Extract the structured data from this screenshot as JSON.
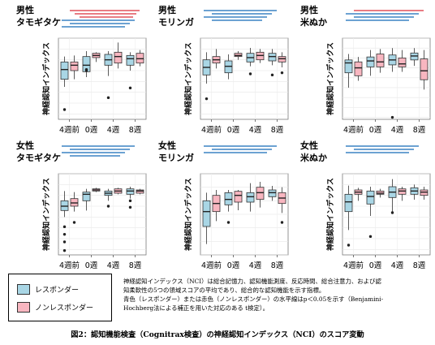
{
  "colors": {
    "responder": "#a9d6e5",
    "nonresponder": "#f8b6c0",
    "line_blue": "#3b84c4",
    "line_red": "#e0505a"
  },
  "x_ticks": [
    "4週前",
    "0週",
    "4週",
    "8週"
  ],
  "ylabel": "神経認知インデックス",
  "legend": {
    "responder": "レスポンダー",
    "nonresponder": "ノンレスポンダー"
  },
  "note": [
    "神経認知インデックス（NCI）は総合記憶力、認知機能測度、反応時間、総合注意力、および認",
    "知柔軟性の5つの領域スコアの平均であり、総合的な認知機能を示す指標。",
    "青色（レスポンダー）または赤色（ノンレスポンダー）の水平線はp＜0.05を示す（Benjamini-",
    "Hochberg法による補正を用いた対応のある t検定）。"
  ],
  "caption": "図2：認知機能検査（Cognitrax検査）の神経認知インデックス（NCI）のスコア変動",
  "chart_data": [
    {
      "type": "box",
      "sex": "男性",
      "food": "タモギタケ",
      "ylim": [
        45,
        120
      ],
      "categories": [
        "4週前",
        "0週",
        "4週",
        "8週"
      ],
      "responder": [
        {
          "min": 75,
          "q1": 82,
          "median": 91,
          "q3": 98,
          "max": 103,
          "outliers": [
            54
          ]
        },
        {
          "min": 84,
          "q1": 89,
          "median": 95,
          "q3": 103,
          "max": 108,
          "outliers": [
            90,
            91
          ]
        },
        {
          "min": 85,
          "q1": 95,
          "median": 100,
          "q3": 105,
          "max": 108,
          "outliers": [
            65
          ]
        },
        {
          "min": 90,
          "q1": 95,
          "median": 101,
          "q3": 104,
          "max": 107,
          "outliers": [
            74
          ]
        }
      ],
      "nonresponder": [
        {
          "min": 82,
          "q1": 90,
          "median": 95,
          "q3": 98,
          "max": 104,
          "outliers": []
        },
        {
          "min": 98,
          "q1": 102,
          "median": 104,
          "q3": 106,
          "max": 107,
          "outliers": []
        },
        {
          "min": 92,
          "q1": 97,
          "median": 103,
          "q3": 107,
          "max": 116,
          "outliers": []
        },
        {
          "min": 94,
          "q1": 97,
          "median": 101,
          "q3": 106,
          "max": 109,
          "outliers": []
        }
      ],
      "sig_red": 3,
      "sig_blue": 3
    },
    {
      "type": "box",
      "sex": "男性",
      "food": "モリンガ",
      "ylim": [
        45,
        120
      ],
      "categories": [
        "4週前",
        "0週",
        "4週",
        "8週"
      ],
      "responder": [
        {
          "min": 78,
          "q1": 86,
          "median": 93,
          "q3": 100,
          "max": 107,
          "outliers": [
            64
          ]
        },
        {
          "min": 82,
          "q1": 88,
          "median": 94,
          "q3": 99,
          "max": 105,
          "outliers": []
        },
        {
          "min": 94,
          "q1": 98,
          "median": 102,
          "q3": 106,
          "max": 111,
          "outliers": [
            87
          ]
        },
        {
          "min": 95,
          "q1": 99,
          "median": 103,
          "q3": 106,
          "max": 110,
          "outliers": [
            86
          ]
        }
      ],
      "nonresponder": [
        {
          "min": 92,
          "q1": 97,
          "median": 100,
          "q3": 103,
          "max": 110,
          "outliers": []
        },
        {
          "min": 100,
          "q1": 103,
          "median": 104,
          "q3": 106,
          "max": 108,
          "outliers": []
        },
        {
          "min": 97,
          "q1": 100,
          "median": 104,
          "q3": 107,
          "max": 110,
          "outliers": []
        },
        {
          "min": 93,
          "q1": 98,
          "median": 101,
          "q3": 103,
          "max": 107,
          "outliers": [
            88
          ]
        }
      ],
      "sig_red": 0,
      "sig_blue": 4
    },
    {
      "type": "box",
      "sex": "男性",
      "food": "米ぬか",
      "ylim": [
        38,
        120
      ],
      "categories": [
        "4週前",
        "0週",
        "4週",
        "8週"
      ],
      "responder": [
        {
          "min": 70,
          "q1": 85,
          "median": 95,
          "q3": 98,
          "max": 104,
          "outliers": []
        },
        {
          "min": 82,
          "q1": 91,
          "median": 97,
          "q3": 101,
          "max": 108,
          "outliers": []
        },
        {
          "min": 86,
          "q1": 93,
          "median": 98,
          "q3": 103,
          "max": 110,
          "outliers": [
            40
          ]
        },
        {
          "min": 92,
          "q1": 98,
          "median": 102,
          "q3": 105,
          "max": 110,
          "outliers": []
        }
      ],
      "nonresponder": [
        {
          "min": 77,
          "q1": 82,
          "median": 90,
          "q3": 96,
          "max": 101,
          "outliers": []
        },
        {
          "min": 85,
          "q1": 91,
          "median": 96,
          "q3": 104,
          "max": 109,
          "outliers": []
        },
        {
          "min": 86,
          "q1": 91,
          "median": 94,
          "q3": 100,
          "max": 108,
          "outliers": []
        },
        {
          "min": 68,
          "q1": 78,
          "median": 87,
          "q3": 99,
          "max": 108,
          "outliers": []
        }
      ],
      "sig_red": 1,
      "sig_blue": 3
    },
    {
      "type": "box",
      "sex": "女性",
      "food": "タモギタケ",
      "ylim": [
        45,
        120
      ],
      "categories": [
        "4週前",
        "0週",
        "4週",
        "8週"
      ],
      "responder": [
        {
          "min": 80,
          "q1": 86,
          "median": 90,
          "q3": 95,
          "max": 104,
          "outliers": [
            71,
            64,
            57,
            49
          ]
        },
        {
          "min": 86,
          "q1": 95,
          "median": 101,
          "q3": 103,
          "max": 106,
          "outliers": []
        },
        {
          "min": 95,
          "q1": 100,
          "median": 102,
          "q3": 104,
          "max": 106,
          "outliers": [
            90
          ]
        },
        {
          "min": 97,
          "q1": 101,
          "median": 104,
          "q3": 106,
          "max": 108,
          "outliers": [
            95,
            89
          ]
        }
      ],
      "nonresponder": [
        {
          "min": 85,
          "q1": 90,
          "median": 93,
          "q3": 97,
          "max": 103,
          "outliers": [
            75
          ]
        },
        {
          "min": 103,
          "q1": 104,
          "median": 105,
          "q3": 106,
          "max": 107,
          "outliers": []
        },
        {
          "min": 101,
          "q1": 102,
          "median": 104,
          "q3": 106,
          "max": 107,
          "outliers": []
        },
        {
          "min": 101,
          "q1": 102,
          "median": 104,
          "q3": 105,
          "max": 106,
          "outliers": []
        }
      ],
      "sig_red": 0,
      "sig_blue": 4
    },
    {
      "type": "box",
      "sex": "女性",
      "food": "モリンガ",
      "ylim": [
        60,
        120
      ],
      "categories": [
        "4週前",
        "0週",
        "4週",
        "8週"
      ],
      "responder": [
        {
          "min": 68,
          "q1": 81,
          "median": 92,
          "q3": 100,
          "max": 106,
          "outliers": []
        },
        {
          "min": 92,
          "q1": 97,
          "median": 101,
          "q3": 106,
          "max": 108,
          "outliers": [
            84
          ]
        },
        {
          "min": 92,
          "q1": 99,
          "median": 103,
          "q3": 106,
          "max": 113,
          "outliers": []
        },
        {
          "min": 100,
          "q1": 103,
          "median": 106,
          "q3": 108,
          "max": 111,
          "outliers": []
        }
      ],
      "nonresponder": [
        {
          "min": 85,
          "q1": 92,
          "median": 98,
          "q3": 104,
          "max": 108,
          "outliers": []
        },
        {
          "min": 93,
          "q1": 99,
          "median": 104,
          "q3": 107,
          "max": 108,
          "outliers": []
        },
        {
          "min": 95,
          "q1": 101,
          "median": 106,
          "q3": 110,
          "max": 114,
          "outliers": []
        },
        {
          "min": 91,
          "q1": 98,
          "median": 102,
          "q3": 106,
          "max": 110,
          "outliers": [
            84
          ]
        }
      ],
      "sig_red": 0,
      "sig_blue": 3
    },
    {
      "type": "box",
      "sex": "女性",
      "food": "米ぬか",
      "ylim": [
        45,
        120
      ],
      "categories": [
        "4週前",
        "0週",
        "4週",
        "8週"
      ],
      "responder": [
        {
          "min": 68,
          "q1": 85,
          "median": 94,
          "q3": 101,
          "max": 109,
          "outliers": [
            54
          ]
        },
        {
          "min": 81,
          "q1": 92,
          "median": 99,
          "q3": 104,
          "max": 108,
          "outliers": [
            62
          ]
        },
        {
          "min": 85,
          "q1": 98,
          "median": 103,
          "q3": 108,
          "max": 115,
          "outliers": [
            84
          ]
        },
        {
          "min": 96,
          "q1": 101,
          "median": 104,
          "q3": 107,
          "max": 110,
          "outliers": []
        }
      ],
      "nonresponder": [
        {
          "min": 95,
          "q1": 101,
          "median": 103,
          "q3": 105,
          "max": 107,
          "outliers": []
        },
        {
          "min": 98,
          "q1": 101,
          "median": 102,
          "q3": 104,
          "max": 106,
          "outliers": []
        },
        {
          "min": 95,
          "q1": 101,
          "median": 104,
          "q3": 106,
          "max": 108,
          "outliers": []
        },
        {
          "min": 96,
          "q1": 100,
          "median": 103,
          "q3": 105,
          "max": 108,
          "outliers": []
        }
      ],
      "sig_red": 0,
      "sig_blue": 3
    }
  ]
}
